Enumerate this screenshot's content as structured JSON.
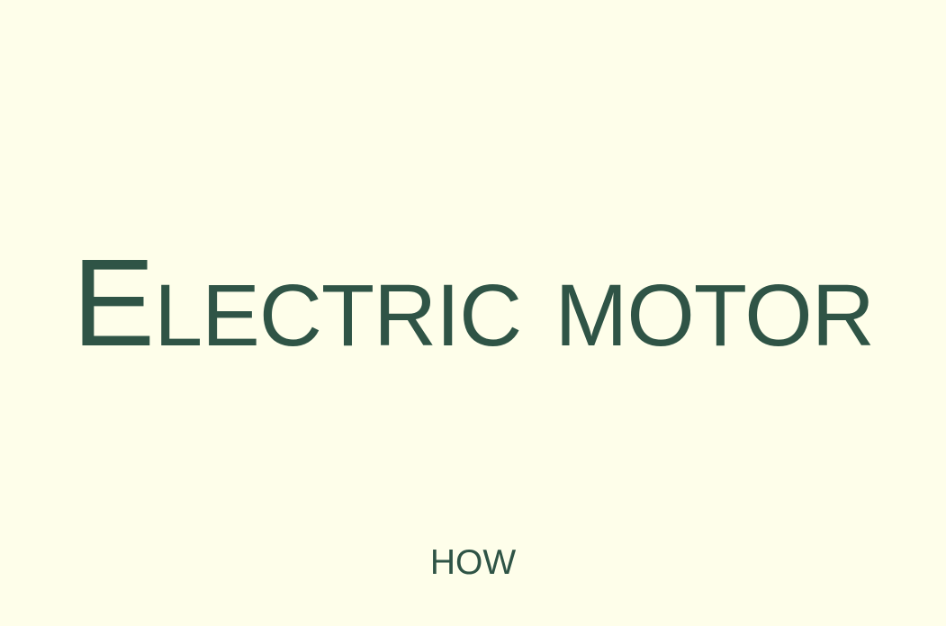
{
  "slide": {
    "title": "Electric motor",
    "subtitle": "HOW"
  },
  "colors": {
    "background": "#fefeea",
    "text": "#2f5446"
  }
}
